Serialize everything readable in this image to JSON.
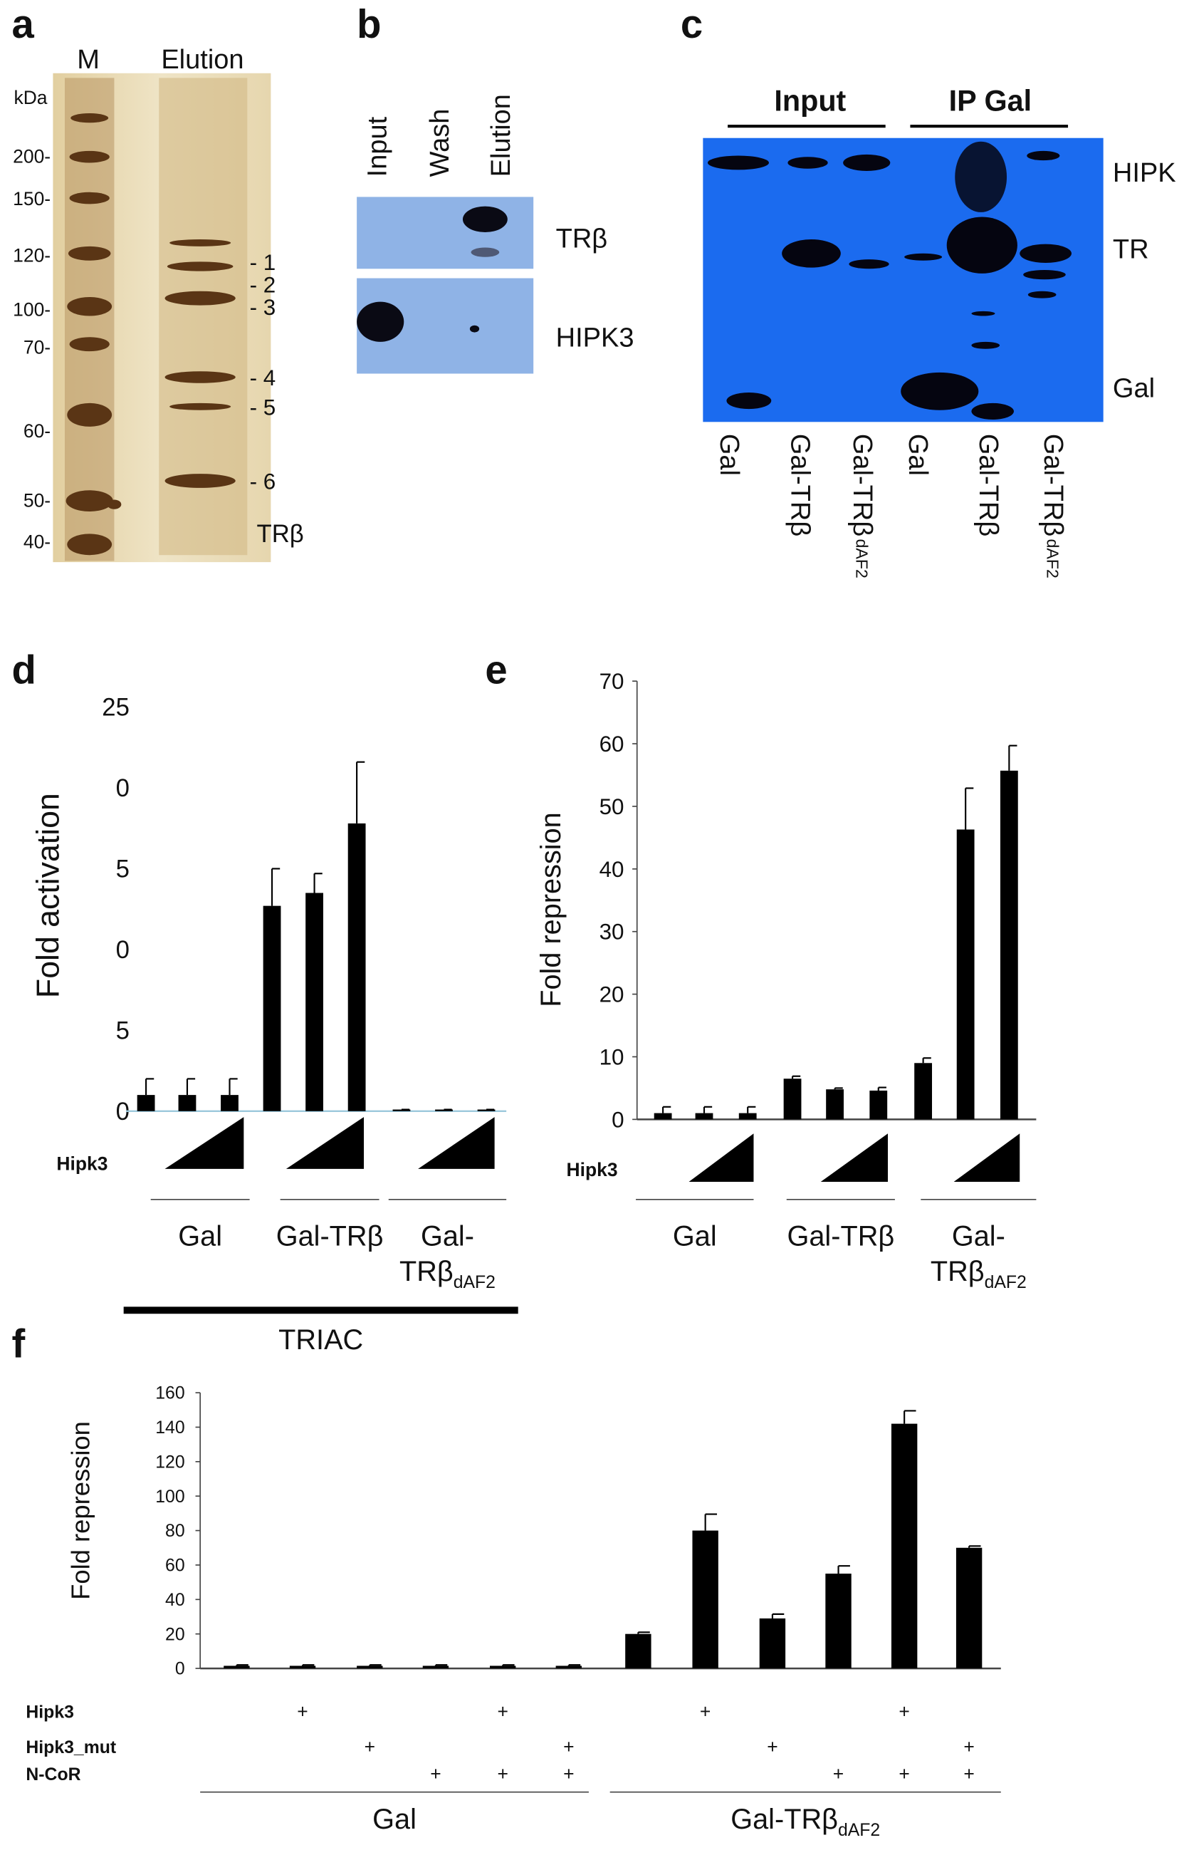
{
  "panels": {
    "a": {
      "letter": "a",
      "lanes": [
        "M",
        "Elution"
      ],
      "unit": "kDa",
      "markers": [
        "200-",
        "150-",
        "120-",
        "100-",
        "70-",
        "60-",
        "50-",
        "40-"
      ],
      "bands": [
        "- 1",
        "- 2",
        "- 3",
        "- 4",
        "- 5",
        "- 6"
      ],
      "protein": "TRβ"
    },
    "b": {
      "letter": "b",
      "lanes": [
        "Input",
        "Wash",
        "Elution"
      ],
      "blots": [
        "TRβ",
        "HIPK3"
      ]
    },
    "c": {
      "letter": "c",
      "groups": [
        "Input",
        "IP Gal"
      ],
      "blots": [
        "HIPK",
        "TR",
        "Gal"
      ],
      "lanes": [
        {
          "text": "Gal"
        },
        {
          "text": "Gal-TRβ"
        },
        {
          "text": "Gal-TRβ",
          "sub": "dAF2"
        },
        {
          "text": "Gal"
        },
        {
          "text": "Gal-TRβ"
        },
        {
          "text": "Gal-TRβ",
          "sub": "dAF2"
        }
      ]
    }
  },
  "chart_data": [
    {
      "type": "bar",
      "letter": "d",
      "ylabel": "Fold activation",
      "color": "#000000",
      "ylim": [
        0,
        25
      ],
      "yticks": [
        0,
        5,
        {
          "value": 10,
          "label": "0"
        },
        {
          "value": 15,
          "label": "5"
        },
        {
          "value": 20,
          "label": "0"
        },
        25
      ],
      "values": [
        1,
        1,
        1,
        12.7,
        13.5,
        17.8,
        0.1,
        0.1,
        0.1
      ],
      "errors": [
        1,
        1,
        1,
        2.3,
        1.2,
        3.8,
        0,
        0,
        0
      ],
      "factor": "Hipk3",
      "groups": [
        {
          "lines": [
            "Gal"
          ]
        },
        {
          "lines": [
            "Gal-TRβ"
          ]
        },
        {
          "lines": [
            "Gal-",
            "TRβ"
          ],
          "sub": "dAF2"
        }
      ],
      "treatment": "TRIAC"
    },
    {
      "type": "bar",
      "letter": "e",
      "ylabel": "Fold repression",
      "color": "#000000",
      "ylim": [
        0,
        70
      ],
      "yticks": [
        0,
        10,
        20,
        30,
        40,
        50,
        60,
        70
      ],
      "values": [
        1,
        1,
        1,
        6.5,
        4.8,
        4.6,
        9,
        46.3,
        55.7
      ],
      "errors": [
        1,
        1,
        1,
        0.4,
        0.2,
        0.5,
        0.8,
        6.6,
        4
      ],
      "factor": "Hipk3",
      "groups": [
        {
          "lines": [
            "Gal"
          ]
        },
        {
          "lines": [
            "Gal-TRβ"
          ]
        },
        {
          "lines": [
            "Gal-",
            "TRβ"
          ],
          "sub": "dAF2"
        }
      ]
    },
    {
      "type": "bar",
      "letter": "f",
      "ylabel": "Fold repression",
      "color": "#000000",
      "ylim": [
        0,
        160
      ],
      "yticks": [
        0,
        20,
        40,
        60,
        80,
        100,
        120,
        140,
        160
      ],
      "values": [
        1.5,
        1.5,
        1.5,
        1.5,
        1.5,
        1.5,
        20,
        80,
        29,
        55,
        142,
        70
      ],
      "errors": [
        0.5,
        0.5,
        0.5,
        0.5,
        0.5,
        0.5,
        1,
        9.5,
        2.5,
        4.5,
        7.5,
        1
      ],
      "conditions": [
        {
          "name": "Hipk3",
          "marks": [
            null,
            "+",
            null,
            null,
            "+",
            null,
            null,
            "+",
            null,
            null,
            "+",
            null
          ]
        },
        {
          "name": "Hipk3_mut",
          "marks": [
            null,
            null,
            "+",
            null,
            null,
            "+",
            null,
            null,
            "+",
            null,
            null,
            "+"
          ]
        },
        {
          "name": "N-CoR",
          "marks": [
            null,
            null,
            null,
            "+",
            "+",
            "+",
            null,
            null,
            null,
            "+",
            "+",
            "+"
          ]
        }
      ],
      "groups": [
        {
          "lines": [
            "Gal"
          ]
        },
        {
          "lines": [
            "Gal-TRβ"
          ],
          "sub": "dAF2"
        }
      ]
    }
  ]
}
